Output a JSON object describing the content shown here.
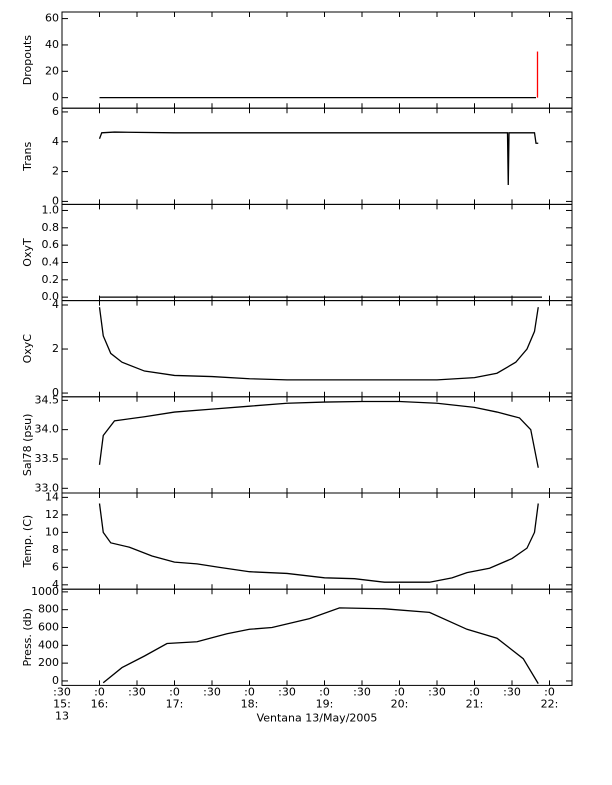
{
  "chart_data": [
    {
      "type": "line",
      "ylabel": "Dropouts",
      "ylim": [
        -8,
        65
      ],
      "yticks": [
        0,
        20,
        40,
        60
      ],
      "x": [
        16.0,
        16.5,
        17.0,
        17.5,
        18.0,
        18.5,
        19.0,
        19.5,
        20.0,
        20.5,
        21.0,
        21.5,
        21.82
      ],
      "series": [
        {
          "color": "#000000",
          "values": [
            0,
            0,
            0,
            0,
            0,
            0,
            0,
            0,
            0,
            0,
            0,
            0,
            0
          ]
        }
      ],
      "spikes": {
        "color": "#ff0000",
        "x": [
          21.84,
          21.84
        ],
        "values": [
          0,
          35
        ]
      }
    },
    {
      "type": "line",
      "ylabel": "Trans",
      "ylim": [
        -0.2,
        6.25
      ],
      "yticks": [
        0,
        2,
        4,
        6
      ],
      "x": [
        16.0,
        16.03,
        16.2,
        17.0,
        18.0,
        19.0,
        20.0,
        21.0,
        21.44,
        21.45,
        21.46,
        21.8,
        21.82,
        21.85
      ],
      "series": [
        {
          "color": "#000000",
          "values": [
            4.2,
            4.6,
            4.65,
            4.6,
            4.6,
            4.6,
            4.6,
            4.6,
            4.6,
            1.1,
            4.6,
            4.6,
            3.9,
            3.9
          ]
        }
      ]
    },
    {
      "type": "line",
      "ylabel": "OxyT",
      "ylim": [
        -0.04,
        1.07
      ],
      "yticks": [
        {
          "value": 0,
          "label": "0.0"
        },
        {
          "value": 0.2,
          "label": "0.2"
        },
        {
          "value": 0.4,
          "label": "0.4"
        },
        {
          "value": 0.6,
          "label": "0.6"
        },
        {
          "value": 0.8,
          "label": "0.8"
        },
        {
          "value": 1,
          "label": "1.0"
        }
      ],
      "x": [
        16.0,
        21.9
      ],
      "series": [
        {
          "color": "#000000",
          "values": [
            0,
            0
          ]
        }
      ]
    },
    {
      "type": "line",
      "ylabel": "OxyC",
      "ylim": [
        -0.17,
        4.2
      ],
      "yticks": [
        0,
        2,
        4
      ],
      "x": [
        16.0,
        16.05,
        16.15,
        16.3,
        16.6,
        17.0,
        17.5,
        18.0,
        18.5,
        19.5,
        20.5,
        21.0,
        21.3,
        21.55,
        21.7,
        21.8,
        21.85
      ],
      "series": [
        {
          "color": "#000000",
          "values": [
            3.9,
            2.6,
            1.8,
            1.4,
            1.0,
            0.8,
            0.75,
            0.65,
            0.6,
            0.6,
            0.6,
            0.7,
            0.9,
            1.4,
            2.0,
            2.8,
            3.9
          ]
        }
      ]
    },
    {
      "type": "line",
      "ylabel": "Sal78 (psu)",
      "ylim": [
        32.92,
        34.56
      ],
      "yticks": [
        {
          "value": 33,
          "label": "33.0"
        },
        33.5,
        {
          "value": 34,
          "label": "34.0"
        },
        34.5
      ],
      "x": [
        16.0,
        16.05,
        16.2,
        16.6,
        17.0,
        17.5,
        18.0,
        18.5,
        19.0,
        19.5,
        20.0,
        20.5,
        21.0,
        21.3,
        21.6,
        21.75,
        21.85
      ],
      "series": [
        {
          "color": "#000000",
          "values": [
            33.4,
            33.9,
            34.15,
            34.22,
            34.3,
            34.35,
            34.4,
            34.45,
            34.47,
            34.48,
            34.48,
            34.45,
            34.38,
            34.3,
            34.2,
            34.0,
            33.35
          ]
        }
      ]
    },
    {
      "type": "line",
      "ylabel": "Temp. (C)",
      "ylim": [
        3.5,
        14.5
      ],
      "yticks": [
        4,
        6,
        8,
        10,
        12,
        14
      ],
      "x": [
        16.0,
        16.05,
        16.15,
        16.4,
        16.7,
        17.0,
        17.3,
        17.6,
        18.0,
        18.5,
        19.0,
        19.4,
        19.8,
        20.4,
        20.7,
        20.9,
        21.2,
        21.5,
        21.7,
        21.8,
        21.85
      ],
      "series": [
        {
          "color": "#000000",
          "values": [
            13.3,
            10.0,
            8.8,
            8.3,
            7.3,
            6.6,
            6.4,
            6.0,
            5.5,
            5.3,
            4.8,
            4.7,
            4.3,
            4.3,
            4.8,
            5.4,
            5.9,
            7.0,
            8.2,
            10.0,
            13.3
          ]
        }
      ]
    },
    {
      "type": "line",
      "ylabel": "Press. (db)",
      "ylim": [
        -50,
        1030
      ],
      "yticks": [
        0,
        200,
        400,
        600,
        800,
        1000
      ],
      "x": [
        16.05,
        16.3,
        16.6,
        16.9,
        17.3,
        17.7,
        18.0,
        18.3,
        18.8,
        19.2,
        19.8,
        20.4,
        20.9,
        21.3,
        21.65,
        21.85
      ],
      "series": [
        {
          "color": "#000000",
          "values": [
            -20,
            150,
            280,
            420,
            440,
            530,
            580,
            600,
            700,
            820,
            810,
            770,
            580,
            480,
            250,
            -30
          ]
        }
      ],
      "xlim": [
        15.5,
        22.3
      ],
      "xticks": [
        {
          "value": 15.5,
          "label": ":30"
        },
        {
          "value": 16,
          "label": ":0"
        },
        {
          "value": 16.5,
          "label": ":30"
        },
        {
          "value": 17,
          "label": ":0"
        },
        {
          "value": 17.5,
          "label": ":30"
        },
        {
          "value": 18,
          "label": ":0"
        },
        {
          "value": 18.5,
          "label": ":30"
        },
        {
          "value": 19,
          "label": ":0"
        },
        {
          "value": 19.5,
          "label": ":30"
        },
        {
          "value": 20,
          "label": ":0"
        },
        {
          "value": 20.5,
          "label": ":30"
        },
        {
          "value": 21,
          "label": ":0"
        },
        {
          "value": 21.5,
          "label": ":30"
        },
        {
          "value": 22,
          "label": ":0"
        }
      ],
      "xtick_hours": [
        {
          "value": 15.5,
          "label": "15:"
        },
        {
          "value": 16,
          "label": "16:"
        },
        {
          "value": 17,
          "label": "17:"
        },
        {
          "value": 18,
          "label": "18:"
        },
        {
          "value": 19,
          "label": "19:"
        },
        {
          "value": 20,
          "label": "20:"
        },
        {
          "value": 21,
          "label": "21:"
        },
        {
          "value": 22,
          "label": "22:"
        }
      ],
      "xtick_day": {
        "value": 15.5,
        "label": "13"
      },
      "xlabel": "Ventana 13/May/2005"
    }
  ]
}
